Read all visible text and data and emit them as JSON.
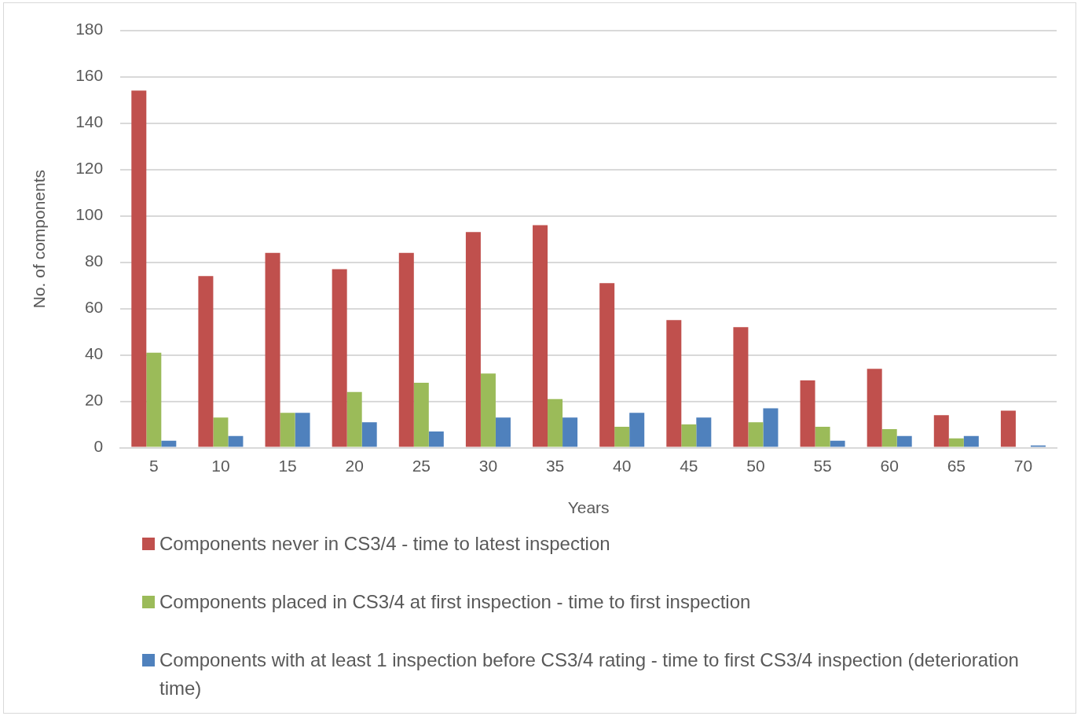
{
  "chart_data": {
    "type": "bar",
    "xlabel": "Years",
    "ylabel": "No. of components",
    "categories": [
      "5",
      "10",
      "15",
      "20",
      "25",
      "30",
      "35",
      "40",
      "45",
      "50",
      "55",
      "60",
      "65",
      "70"
    ],
    "series": [
      {
        "name": "Components never in CS3/4 - time to latest inspection",
        "color": "#c0504d",
        "values": [
          154,
          74,
          84,
          77,
          84,
          93,
          96,
          71,
          55,
          52,
          29,
          34,
          14,
          16
        ]
      },
      {
        "name": "Components placed in CS3/4 at first inspection - time to first inspection",
        "color": "#9bbb59",
        "values": [
          41,
          13,
          15,
          24,
          28,
          32,
          21,
          9,
          10,
          11,
          9,
          8,
          4,
          0
        ]
      },
      {
        "name": "Components with at least 1 inspection before CS3/4 rating - time to first CS3/4 inspection (deterioration time)",
        "color": "#4f81bd",
        "values": [
          3,
          5,
          15,
          11,
          7,
          13,
          13,
          15,
          13,
          17,
          3,
          5,
          5,
          1
        ]
      }
    ],
    "ylim": [
      0,
      180
    ],
    "yticks": [
      0,
      20,
      40,
      60,
      80,
      100,
      120,
      140,
      160,
      180
    ],
    "grid": "y",
    "legend": "bottom"
  }
}
